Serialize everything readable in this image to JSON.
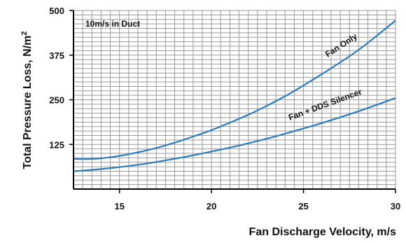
{
  "chart_data": {
    "type": "line",
    "xlabel": "Fan Discharge Velocity, m/s",
    "ylabel_main": "Total Pressure Loss, N/m",
    "ylabel_sup": "2",
    "annotation": "10m/s in Duct",
    "xlim": [
      12.5,
      30
    ],
    "ylim": [
      0,
      500
    ],
    "x_ticks": [
      15,
      20,
      25,
      30
    ],
    "y_ticks": [
      125,
      250,
      375,
      500
    ],
    "grid": true,
    "series_color": "#2b7bbf",
    "series": [
      {
        "name": "Fan Only",
        "x": [
          12.5,
          13,
          14,
          15,
          16,
          17,
          18,
          19,
          20,
          21,
          22,
          23,
          24,
          25,
          26,
          27,
          28,
          29,
          30
        ],
        "y": [
          85,
          84,
          86,
          93,
          103,
          115,
          130,
          147,
          165,
          186,
          208,
          233,
          260,
          290,
          322,
          355,
          390,
          430,
          472
        ]
      },
      {
        "name": "Fan + DDS Silencer",
        "x": [
          12.5,
          14,
          16,
          18,
          20,
          22,
          24,
          26,
          28,
          30
        ],
        "y": [
          50,
          56,
          68,
          85,
          105,
          128,
          155,
          185,
          218,
          255
        ]
      }
    ]
  }
}
